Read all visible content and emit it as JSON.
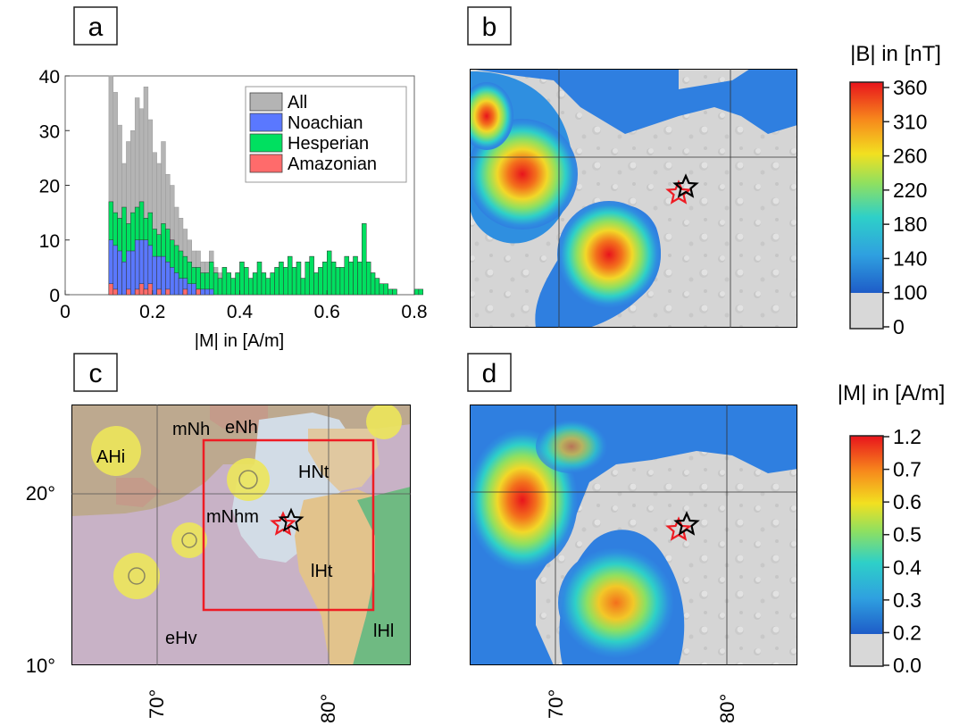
{
  "panels": {
    "a": "a",
    "b": "b",
    "c": "c",
    "d": "d"
  },
  "colorbar_b": {
    "title": "|B| in [nT]",
    "ticks": [
      "360",
      "310",
      "260",
      "220",
      "180",
      "140",
      "100",
      "0"
    ]
  },
  "colorbar_d": {
    "title": "|M| in [A/m]",
    "ticks": [
      "1.2",
      "0.7",
      "0.6",
      "0.5",
      "0.4",
      "0.3",
      "0.2",
      "0.0"
    ]
  },
  "map_c": {
    "lat_labels": [
      "20°",
      "10°"
    ],
    "lon_labels": [
      "70°",
      "80°"
    ],
    "units": [
      "mNh",
      "eNh",
      "AHi",
      "HNt",
      "mNhm",
      "lHt",
      "lHl",
      "eHv"
    ]
  },
  "map_bd": {
    "lon_labels": [
      "70°",
      "80°"
    ]
  },
  "colors": {
    "All": "#b4b4b4",
    "Noachian": "#5a78ff",
    "Hesperian": "#00e060",
    "Amazonian": "#ff6b6b",
    "study_box": "#ee1c24"
  },
  "chart_data": [
    {
      "type": "bar",
      "panel": "a",
      "xlabel": "|M| in [A/m]",
      "ylabel": "",
      "xlim": [
        0,
        0.8
      ],
      "ylim": [
        0,
        40
      ],
      "xticks": [
        "0",
        "0.2",
        "0.4",
        "0.6",
        "0.8"
      ],
      "yticks": [
        "0",
        "10",
        "20",
        "30",
        "40"
      ],
      "legend_position": "top-right",
      "bin_start": 0.1,
      "bin_width": 0.01,
      "series": [
        {
          "name": "All",
          "values": [
            40,
            37,
            31,
            24,
            28,
            30,
            36,
            34,
            38,
            32,
            26,
            24,
            28,
            22,
            20,
            16,
            14,
            12,
            10,
            8,
            8,
            6,
            6,
            8,
            5,
            4,
            5,
            4,
            3,
            4,
            6,
            5,
            3,
            4,
            6,
            4,
            3,
            4,
            5,
            6,
            5,
            7,
            5,
            6,
            3,
            6,
            7,
            4,
            5,
            6,
            8,
            6,
            5,
            5,
            7,
            6,
            7,
            6,
            13,
            6,
            4,
            3,
            2,
            2,
            1,
            1,
            0,
            0,
            0,
            0,
            0,
            0
          ]
        },
        {
          "name": "Noachian",
          "values": [
            10,
            9,
            8,
            6,
            8,
            8,
            10,
            10,
            10,
            9,
            7,
            7,
            7,
            6,
            5,
            4,
            3,
            3,
            2,
            2,
            1,
            1,
            1,
            1,
            0,
            0,
            0,
            0,
            0,
            0,
            0,
            0,
            0,
            0,
            0,
            0,
            0,
            0,
            0,
            0,
            0,
            0,
            0,
            0,
            0,
            0,
            0,
            0,
            0,
            0,
            0,
            0,
            0,
            0,
            0,
            0,
            0,
            0,
            0,
            0,
            0,
            0,
            0,
            0,
            0,
            0,
            0,
            0,
            0,
            0,
            0,
            0
          ]
        },
        {
          "name": "Hesperian",
          "values": [
            17,
            15,
            14,
            16,
            13,
            15,
            16,
            17,
            14,
            15,
            12,
            11,
            13,
            12,
            10,
            9,
            8,
            7,
            6,
            5,
            5,
            4,
            4,
            6,
            4,
            3,
            5,
            4,
            3,
            4,
            6,
            5,
            3,
            4,
            6,
            4,
            3,
            4,
            5,
            6,
            5,
            7,
            5,
            6,
            3,
            6,
            7,
            4,
            5,
            6,
            8,
            6,
            5,
            5,
            7,
            6,
            7,
            6,
            13,
            6,
            4,
            3,
            2,
            2,
            1,
            1,
            0,
            0,
            0,
            0,
            1,
            1
          ]
        },
        {
          "name": "Amazonian",
          "values": [
            2,
            1,
            0,
            0,
            1,
            0,
            1,
            2,
            1,
            2,
            0,
            1,
            0,
            1,
            0,
            0,
            0,
            1,
            0,
            0,
            1,
            0,
            0,
            0,
            0,
            0,
            0,
            0,
            0,
            0,
            0,
            0,
            0,
            0,
            0,
            0,
            0,
            0,
            0,
            0,
            0,
            0,
            0,
            0,
            0,
            0,
            0,
            0,
            0,
            0,
            0,
            0,
            0,
            0,
            0,
            0,
            0,
            0,
            0,
            0,
            0,
            0,
            0,
            0,
            0,
            0,
            0,
            0,
            0,
            0,
            0,
            0
          ]
        }
      ]
    }
  ]
}
